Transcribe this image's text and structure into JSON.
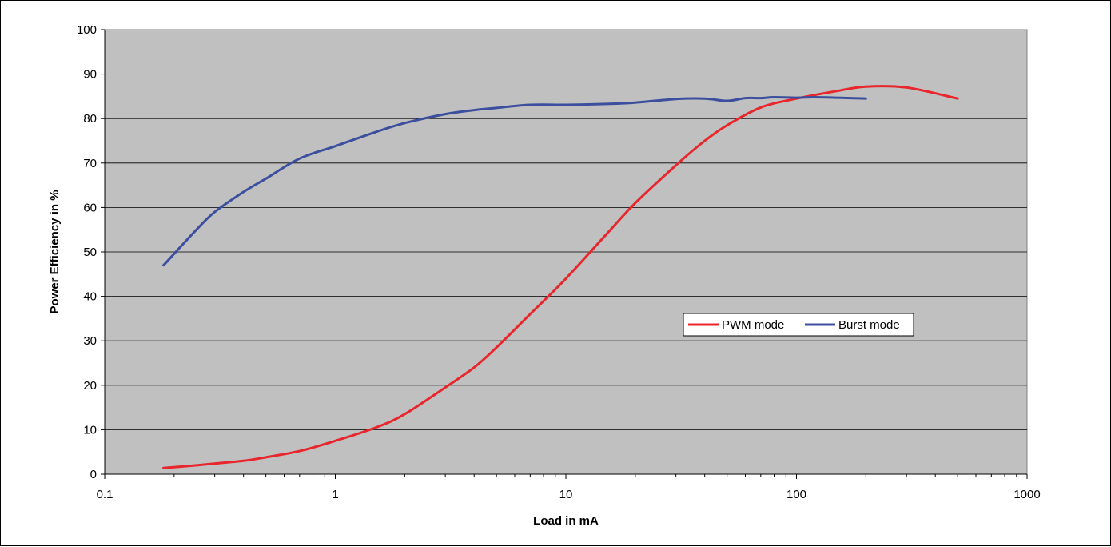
{
  "chart_data": {
    "type": "line",
    "title": "",
    "xlabel": "Load in mA",
    "ylabel": "Power Efficiency in %",
    "x_scale": "log",
    "xlim": [
      0.1,
      1000
    ],
    "ylim": [
      0,
      100
    ],
    "x_ticks": [
      "0.1",
      "1",
      "10",
      "100",
      "1000"
    ],
    "y_ticks": [
      "0",
      "10",
      "20",
      "30",
      "40",
      "50",
      "60",
      "70",
      "80",
      "90",
      "100"
    ],
    "grid": "horizontal",
    "legend_position": "center-right",
    "plot_background": "#c0c0c0",
    "series": [
      {
        "name": "PWM mode",
        "color": "#e8262b",
        "x": [
          0.18,
          0.25,
          0.3,
          0.4,
          0.5,
          0.7,
          1,
          1.5,
          2,
          3,
          4,
          5,
          7,
          10,
          15,
          20,
          30,
          40,
          50,
          70,
          100,
          150,
          200,
          300,
          500
        ],
        "y": [
          1.4,
          2.0,
          2.4,
          3.0,
          3.8,
          5.2,
          7.5,
          10.5,
          13.5,
          19.5,
          24.0,
          28.5,
          36.0,
          44.0,
          54.0,
          61.0,
          69.5,
          75.0,
          78.5,
          82.5,
          84.5,
          86.2,
          87.2,
          87.0,
          84.5
        ]
      },
      {
        "name": "Burst mode",
        "color": "#3c4f9e",
        "x": [
          0.18,
          0.25,
          0.3,
          0.4,
          0.5,
          0.7,
          1,
          1.5,
          2,
          3,
          4,
          5,
          7,
          10,
          15,
          20,
          30,
          40,
          50,
          60,
          70,
          80,
          100,
          120,
          150,
          200
        ],
        "y": [
          47.0,
          55.0,
          59.0,
          63.5,
          66.5,
          71.0,
          73.8,
          77.0,
          79.0,
          81.0,
          81.9,
          82.4,
          83.1,
          83.1,
          83.3,
          83.6,
          84.4,
          84.5,
          84.0,
          84.6,
          84.6,
          84.8,
          84.7,
          84.8,
          84.7,
          84.5
        ]
      }
    ]
  }
}
